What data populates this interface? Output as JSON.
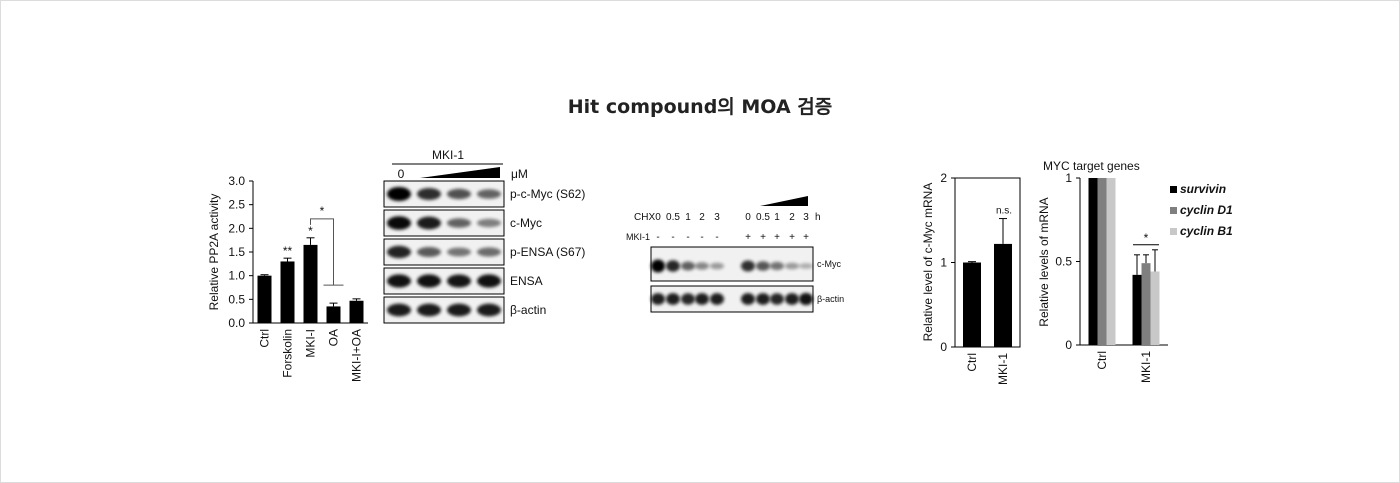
{
  "page": {
    "title": "Hit compound의 MOA 검증"
  },
  "panel_a": {
    "chart_data": {
      "type": "bar",
      "categories": [
        "Ctrl",
        "Forskolin",
        "MKI-I",
        "OA",
        "MKI-I+OA"
      ],
      "values": [
        1.0,
        1.3,
        1.65,
        0.35,
        0.47
      ],
      "errors": [
        0.02,
        0.07,
        0.15,
        0.07,
        0.04
      ],
      "ylabel": "Relative PP2A activity",
      "ylim": [
        0,
        3.0
      ],
      "yticks": [
        "0.0",
        "0.5",
        "1.0",
        "1.5",
        "2.0",
        "2.5",
        "3.0"
      ],
      "bar_marks": [
        "",
        "**",
        "*",
        "",
        ""
      ],
      "bracket_mark": "*",
      "grid": false
    }
  },
  "panel_b": {
    "treatment": "MKI-1",
    "dose_zero": "0",
    "unit": "μM",
    "bands": [
      "p-c-Myc (S62)",
      "c-Myc",
      "p-ENSA (S67)",
      "ENSA",
      "β-actin"
    ]
  },
  "panel_c": {
    "chx_label": "CHX",
    "mki_label": "MKI-1",
    "time_points": [
      "0",
      "0.5",
      "1",
      "2",
      "3",
      "0",
      "0.5",
      "1",
      "2",
      "3"
    ],
    "time_unit": "h",
    "mki_signs": [
      "-",
      "-",
      "-",
      "-",
      "-",
      "+",
      "+",
      "+",
      "+",
      "+"
    ],
    "bands": [
      "c-Myc",
      "β-actin"
    ]
  },
  "panel_d": {
    "chart_data": {
      "type": "bar",
      "categories": [
        "Ctrl",
        "MKI-1"
      ],
      "values": [
        1.0,
        1.22
      ],
      "errors": [
        0.01,
        0.3
      ],
      "ylabel": "Relative  level  of c-Myc mRNA",
      "ylim": [
        0,
        2
      ],
      "yticks": [
        "0",
        "1",
        "2"
      ],
      "annotation": "n.s."
    }
  },
  "panel_e": {
    "chart_data": {
      "type": "bar",
      "title": "MYC target  genes",
      "categories": [
        "Ctrl",
        "MKI-1"
      ],
      "series": [
        {
          "name": "survivin",
          "values": [
            1.0,
            0.42
          ],
          "errors": [
            0,
            0.12
          ],
          "color": "#000000"
        },
        {
          "name": "cyclin D1",
          "values": [
            1.0,
            0.49
          ],
          "errors": [
            0,
            0.05
          ],
          "color": "#7f7f7f"
        },
        {
          "name": "cyclin B1",
          "values": [
            1.0,
            0.44
          ],
          "errors": [
            0,
            0.13
          ],
          "color": "#c8c8c8"
        }
      ],
      "ylabel": "Relative  levels of mRNA",
      "ylim": [
        0,
        1
      ],
      "yticks": [
        "0",
        "0.5",
        "1"
      ],
      "annotation": "*",
      "legend": "top-right"
    }
  }
}
